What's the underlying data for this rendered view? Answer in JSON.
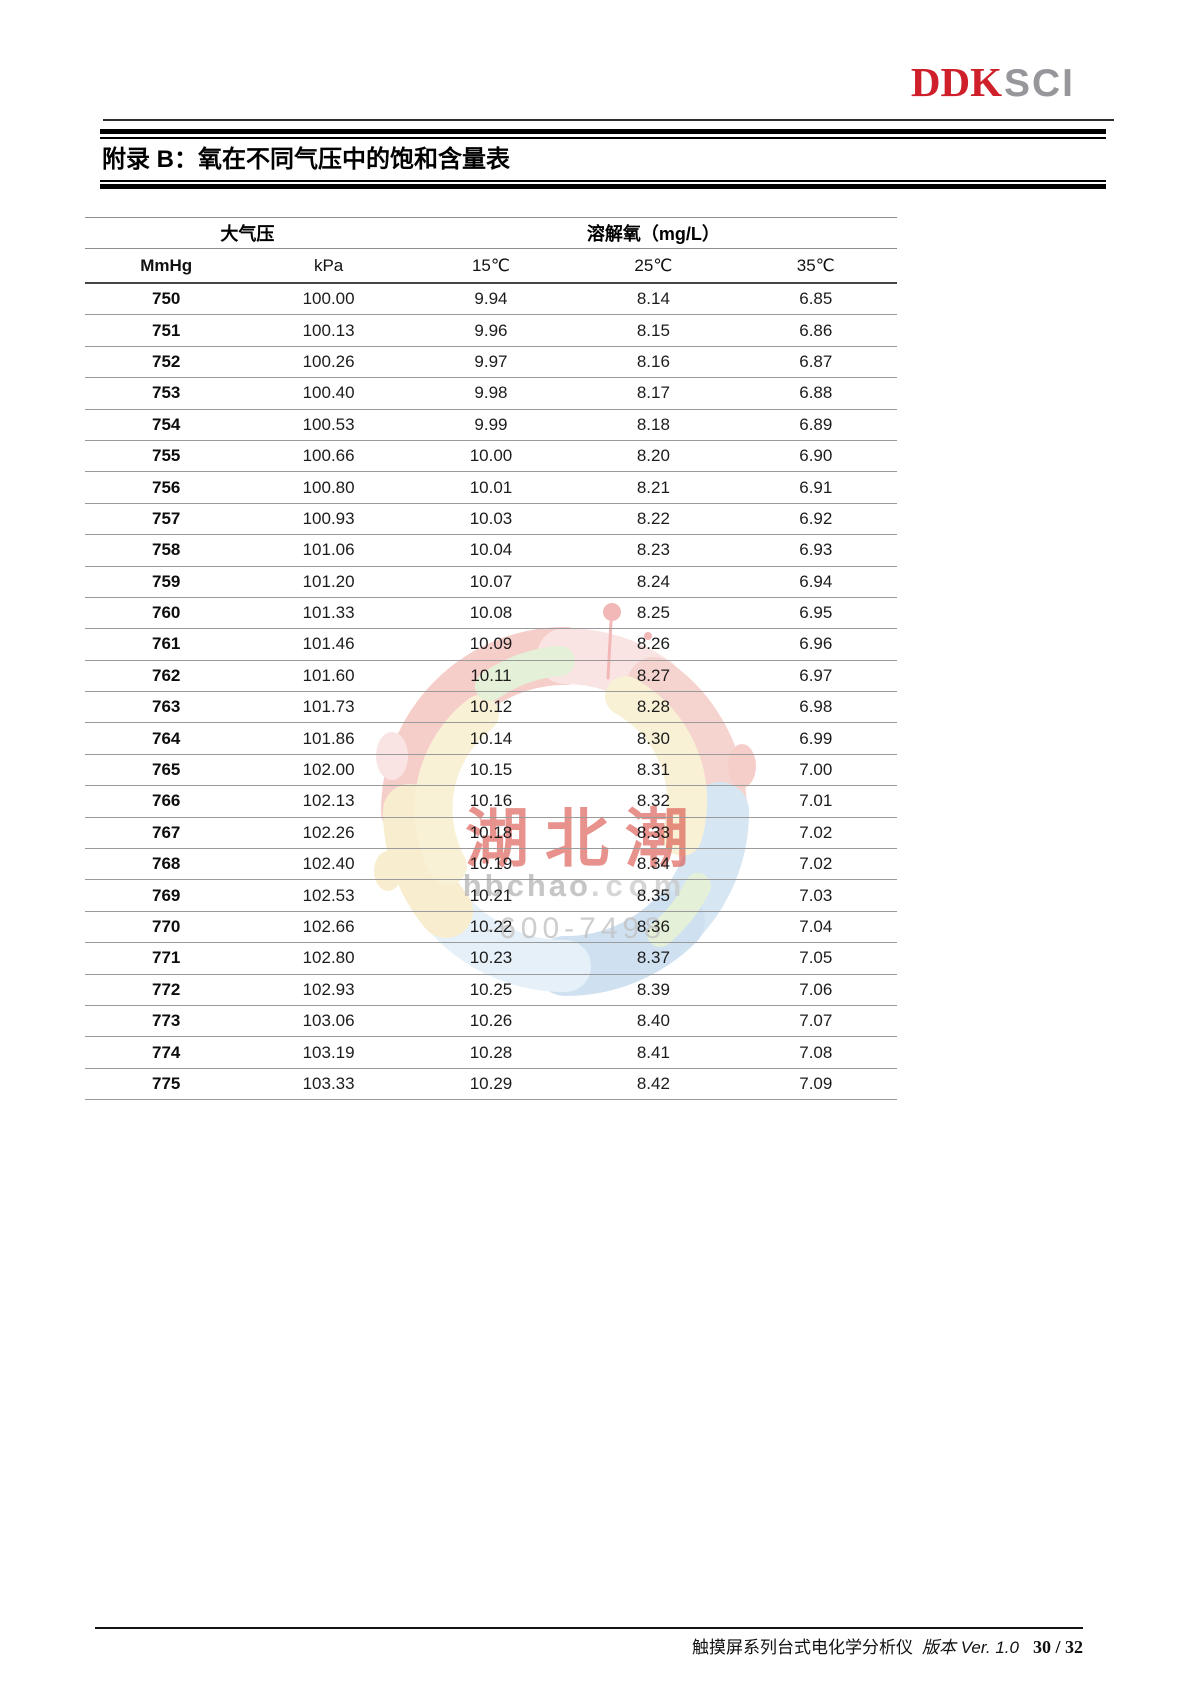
{
  "header": {
    "logo": {
      "part1": "DDK",
      "part2": "SCI"
    }
  },
  "title_bar": {
    "title": "附录 B：氧在不同气压中的饱和含量表"
  },
  "table": {
    "group_headers": [
      {
        "label": "大气压"
      },
      {
        "label": "溶解氧（mg/L）"
      }
    ],
    "columns": [
      "MmHg",
      "kPa",
      "15℃",
      "25℃",
      "35℃"
    ],
    "column_keys": [
      "mmhg",
      "kpa",
      "temp15",
      "temp25",
      "temp35"
    ],
    "rows": [
      [
        "750",
        "100.00",
        "9.94",
        "8.14",
        "6.85"
      ],
      [
        "751",
        "100.13",
        "9.96",
        "8.15",
        "6.86"
      ],
      [
        "752",
        "100.26",
        "9.97",
        "8.16",
        "6.87"
      ],
      [
        "753",
        "100.40",
        "9.98",
        "8.17",
        "6.88"
      ],
      [
        "754",
        "100.53",
        "9.99",
        "8.18",
        "6.89"
      ],
      [
        "755",
        "100.66",
        "10.00",
        "8.20",
        "6.90"
      ],
      [
        "756",
        "100.80",
        "10.01",
        "8.21",
        "6.91"
      ],
      [
        "757",
        "100.93",
        "10.03",
        "8.22",
        "6.92"
      ],
      [
        "758",
        "101.06",
        "10.04",
        "8.23",
        "6.93"
      ],
      [
        "759",
        "101.20",
        "10.07",
        "8.24",
        "6.94"
      ],
      [
        "760",
        "101.33",
        "10.08",
        "8.25",
        "6.95"
      ],
      [
        "761",
        "101.46",
        "10.09",
        "8.26",
        "6.96"
      ],
      [
        "762",
        "101.60",
        "10.11",
        "8.27",
        "6.97"
      ],
      [
        "763",
        "101.73",
        "10.12",
        "8.28",
        "6.98"
      ],
      [
        "764",
        "101.86",
        "10.14",
        "8.30",
        "6.99"
      ],
      [
        "765",
        "102.00",
        "10.15",
        "8.31",
        "7.00"
      ],
      [
        "766",
        "102.13",
        "10.16",
        "8.32",
        "7.01"
      ],
      [
        "767",
        "102.26",
        "10.18",
        "8.33",
        "7.02"
      ],
      [
        "768",
        "102.40",
        "10.19",
        "8.34",
        "7.02"
      ],
      [
        "769",
        "102.53",
        "10.21",
        "8.35",
        "7.03"
      ],
      [
        "770",
        "102.66",
        "10.22",
        "8.36",
        "7.04"
      ],
      [
        "771",
        "102.80",
        "10.23",
        "8.37",
        "7.05"
      ],
      [
        "772",
        "102.93",
        "10.25",
        "8.39",
        "7.06"
      ],
      [
        "773",
        "103.06",
        "10.26",
        "8.40",
        "7.07"
      ],
      [
        "774",
        "103.19",
        "10.28",
        "8.41",
        "7.08"
      ],
      [
        "775",
        "103.33",
        "10.29",
        "8.42",
        "7.09"
      ]
    ]
  },
  "watermark": {
    "characters": "湖北潮",
    "domain": "hbchao",
    "domain_suffix": ".com",
    "phone_fragment": "-600-7498"
  },
  "footer": {
    "product": "触摸屏系列台式电化学分析仪",
    "version": "版本 Ver. 1.0",
    "page_indicator": "30 / 32"
  },
  "colors": {
    "brand_red": "#ce1f2b",
    "brand_gray": "#97979b",
    "watermark_red": "#d94b43",
    "watermark_gray": "#bdbdbd"
  }
}
